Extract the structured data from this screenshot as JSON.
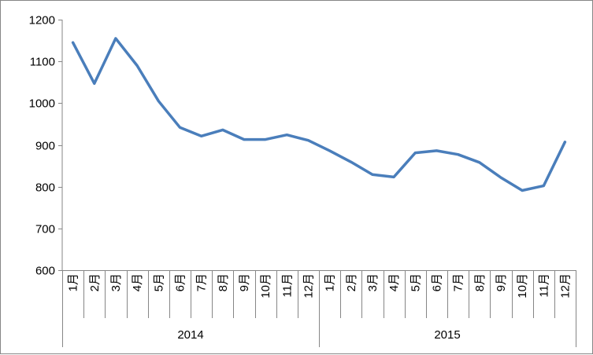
{
  "chart_data": {
    "type": "line",
    "title": "",
    "xlabel": "",
    "ylabel": "",
    "ylim": [
      600,
      1200
    ],
    "yticks": [
      "600",
      "700",
      "800",
      "900",
      "1000",
      "1100",
      "1200"
    ],
    "grid": false,
    "legend": "none",
    "line_color": "#4a7ebb",
    "categories": [
      "1月",
      "2月",
      "3月",
      "4月",
      "5月",
      "6月",
      "7月",
      "8月",
      "9月",
      "10月",
      "11月",
      "12月",
      "1月",
      "2月",
      "3月",
      "4月",
      "5月",
      "6月",
      "7月",
      "8月",
      "9月",
      "10月",
      "11月",
      "12月"
    ],
    "groups": [
      {
        "label": "2014",
        "count": 12
      },
      {
        "label": "2015",
        "count": 12
      }
    ],
    "series": [
      {
        "values": [
          1145,
          1047,
          1155,
          1090,
          1005,
          942,
          921,
          936,
          913,
          913,
          924,
          911,
          886,
          859,
          829,
          823,
          881,
          886,
          877,
          858,
          822,
          791,
          802,
          907
        ]
      }
    ]
  }
}
